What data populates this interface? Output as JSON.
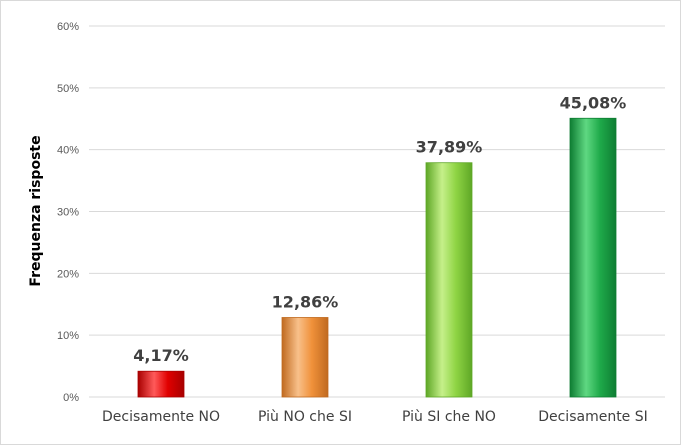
{
  "chart_data": {
    "type": "bar",
    "title": "",
    "xlabel": "",
    "ylabel": "Frequenza risposte",
    "categories": [
      "Decisamente NO",
      "Più NO che SI",
      "Più SI che NO",
      "Decisamente SI"
    ],
    "values": [
      4.17,
      12.86,
      37.89,
      45.08
    ],
    "data_labels": [
      "4,17%",
      "12,86%",
      "37,89%",
      "45,08%"
    ],
    "ylim": [
      0,
      60
    ],
    "yticks": [
      0,
      10,
      20,
      30,
      40,
      50,
      60
    ],
    "ytick_labels": [
      "0%",
      "10%",
      "20%",
      "30%",
      "40%",
      "50%",
      "60%"
    ],
    "grid": true,
    "legend": "none",
    "colors": [
      "#e00000",
      "#f0913a",
      "#8fd444",
      "#1faa4a"
    ],
    "colors_dark": [
      "#a80000",
      "#c06a20",
      "#5ea726",
      "#0e7d33"
    ],
    "colors_light": [
      "#ff5a5a",
      "#f8c08a",
      "#c6f08a",
      "#5fd882"
    ]
  }
}
